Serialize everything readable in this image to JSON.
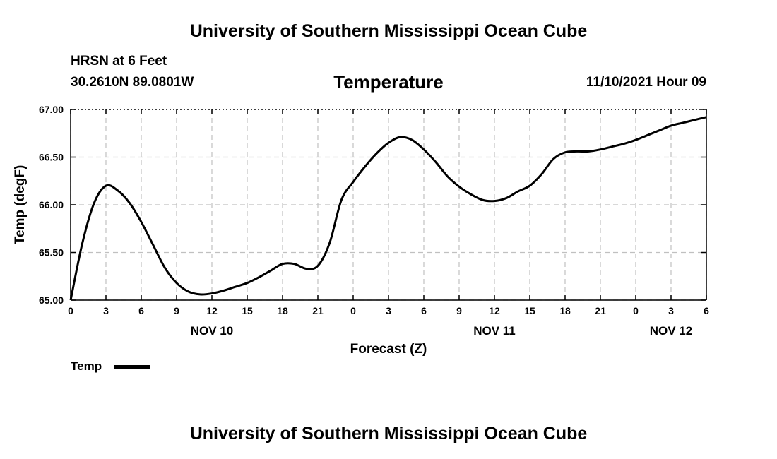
{
  "header": {
    "title": "University of Southern Mississippi Ocean Cube",
    "station": "HRSN at 6 Feet",
    "coords": "30.2610N  89.0801W",
    "chart_title": "Temperature",
    "run_time": "11/10/2021 Hour 09"
  },
  "footer": {
    "title": "University of Southern Mississippi Ocean Cube"
  },
  "legend": {
    "label": "Temp"
  },
  "colors": {
    "line": "#000000",
    "grid": "#c0c0c0"
  },
  "chart_data": {
    "type": "line",
    "title": "Temperature",
    "xlabel": "Forecast (Z)",
    "ylabel": "Temp (degF)",
    "xlim": [
      0,
      54
    ],
    "ylim": [
      65.0,
      67.0
    ],
    "x_tick_labels": [
      "0",
      "3",
      "6",
      "9",
      "12",
      "15",
      "18",
      "21",
      "0",
      "3",
      "6",
      "9",
      "12",
      "15",
      "18",
      "21",
      "0",
      "3",
      "6"
    ],
    "y_tick_labels": [
      "65.00",
      "65.50",
      "66.00",
      "66.50",
      "67.00"
    ],
    "y_ticks": [
      65.0,
      65.5,
      66.0,
      66.5,
      67.0
    ],
    "day_labels": [
      {
        "hour": 12,
        "label": "NOV 10"
      },
      {
        "hour": 36,
        "label": "NOV 11"
      },
      {
        "hour": 51,
        "label": "NOV 12"
      }
    ],
    "grid": true,
    "legend_position": "bottom-left",
    "series": [
      {
        "name": "Temp",
        "x": [
          0,
          1,
          2,
          3,
          4,
          5,
          6,
          7,
          8,
          9,
          10,
          11,
          12,
          13,
          14,
          15,
          16,
          17,
          18,
          19,
          20,
          21,
          22,
          23,
          24,
          25,
          26,
          27,
          28,
          29,
          30,
          31,
          32,
          33,
          34,
          35,
          36,
          37,
          38,
          39,
          40,
          41,
          42,
          43,
          44,
          45,
          46,
          47,
          48,
          49,
          50,
          51,
          52,
          53,
          54
        ],
        "values": [
          65.0,
          65.6,
          66.02,
          66.2,
          66.15,
          66.02,
          65.82,
          65.58,
          65.34,
          65.18,
          65.09,
          65.06,
          65.07,
          65.1,
          65.14,
          65.18,
          65.24,
          65.31,
          65.38,
          65.38,
          65.33,
          65.36,
          65.6,
          66.05,
          66.24,
          66.4,
          66.54,
          66.65,
          66.71,
          66.68,
          66.58,
          66.45,
          66.3,
          66.19,
          66.11,
          66.05,
          66.04,
          66.07,
          66.14,
          66.2,
          66.32,
          66.48,
          66.55,
          66.56,
          66.56,
          66.58,
          66.61,
          66.64,
          66.68,
          66.73,
          66.78,
          66.83,
          66.86,
          66.89,
          66.92
        ]
      }
    ]
  }
}
